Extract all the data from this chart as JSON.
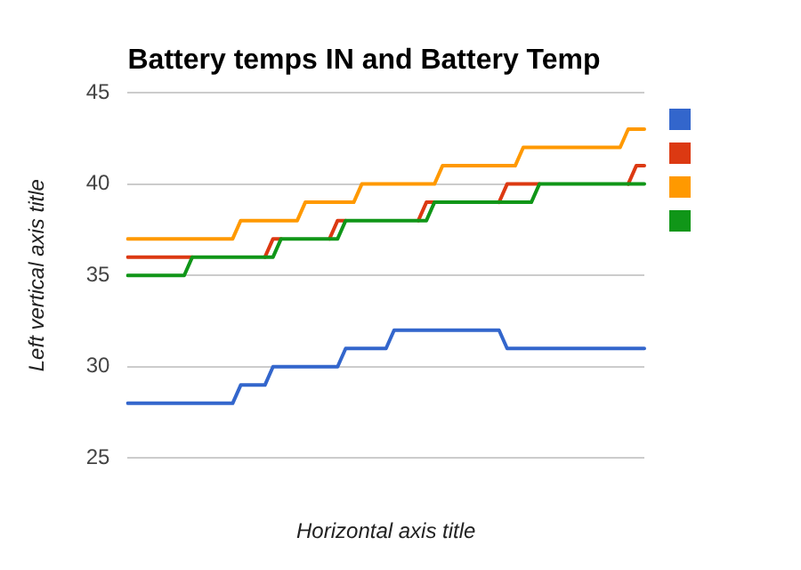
{
  "chart_data": {
    "type": "line",
    "title": "Battery temps IN and Battery Temp",
    "xlabel": "Horizontal axis title",
    "ylabel": "Left vertical axis title",
    "categories": [
      null,
      null,
      null,
      null,
      null,
      null,
      null,
      null,
      null,
      null,
      null,
      null,
      null,
      null,
      null,
      null,
      null,
      null,
      null,
      null,
      null,
      null,
      null,
      null,
      null,
      null,
      null,
      null,
      null,
      null,
      null,
      null,
      null,
      null,
      null,
      null,
      null,
      null,
      null,
      null,
      null,
      null,
      null,
      null,
      null,
      null,
      null,
      null,
      null,
      null,
      null,
      null,
      null,
      null,
      null,
      null,
      null,
      null,
      null,
      null,
      null,
      null,
      null,
      null,
      null
    ],
    "series": [
      {
        "color": "#3366cc",
        "values": [
          28,
          28,
          28,
          28,
          28,
          28,
          28,
          28,
          28,
          28,
          28,
          28,
          28,
          28,
          29,
          29,
          29,
          29,
          30,
          30,
          30,
          30,
          30,
          30,
          30,
          30,
          30,
          31,
          31,
          31,
          31,
          31,
          31,
          32,
          32,
          32,
          32,
          32,
          32,
          32,
          32,
          32,
          32,
          32,
          32,
          32,
          32,
          31,
          31,
          31,
          31,
          31,
          31,
          31,
          31,
          31,
          31,
          31,
          31,
          31,
          31,
          31,
          31,
          31,
          31
        ]
      },
      {
        "color": "#dc3912",
        "values": [
          36,
          36,
          36,
          36,
          36,
          36,
          36,
          36,
          36,
          null,
          null,
          null,
          null,
          null,
          null,
          null,
          null,
          36,
          37,
          37,
          null,
          null,
          null,
          null,
          null,
          37,
          38,
          38,
          null,
          null,
          null,
          null,
          null,
          null,
          null,
          null,
          38,
          39,
          39,
          null,
          null,
          null,
          null,
          null,
          null,
          null,
          39,
          40,
          40,
          40,
          40,
          40,
          null,
          null,
          null,
          null,
          null,
          null,
          null,
          null,
          null,
          null,
          40,
          41,
          41
        ]
      },
      {
        "color": "#ff9900",
        "values": [
          37,
          37,
          37,
          37,
          37,
          37,
          37,
          37,
          37,
          37,
          37,
          37,
          37,
          37,
          38,
          38,
          38,
          38,
          38,
          38,
          38,
          38,
          39,
          39,
          39,
          39,
          39,
          39,
          39,
          40,
          40,
          40,
          40,
          40,
          40,
          40,
          40,
          40,
          40,
          41,
          41,
          41,
          41,
          41,
          41,
          41,
          41,
          41,
          41,
          42,
          42,
          42,
          42,
          42,
          42,
          42,
          42,
          42,
          42,
          42,
          42,
          42,
          43,
          43,
          43
        ]
      },
      {
        "color": "#109618",
        "values": [
          35,
          35,
          35,
          35,
          35,
          35,
          35,
          35,
          36,
          36,
          36,
          36,
          36,
          36,
          36,
          36,
          36,
          36,
          36,
          37,
          37,
          37,
          37,
          37,
          37,
          37,
          37,
          38,
          38,
          38,
          38,
          38,
          38,
          38,
          38,
          38,
          38,
          38,
          39,
          39,
          39,
          39,
          39,
          39,
          39,
          39,
          39,
          39,
          39,
          39,
          39,
          40,
          40,
          40,
          40,
          40,
          40,
          40,
          40,
          40,
          40,
          40,
          40,
          40,
          40
        ]
      }
    ],
    "ylim": [
      25,
      45
    ],
    "yticks": [
      25,
      30,
      35,
      40,
      45
    ],
    "grid": "y",
    "marker": "none"
  }
}
